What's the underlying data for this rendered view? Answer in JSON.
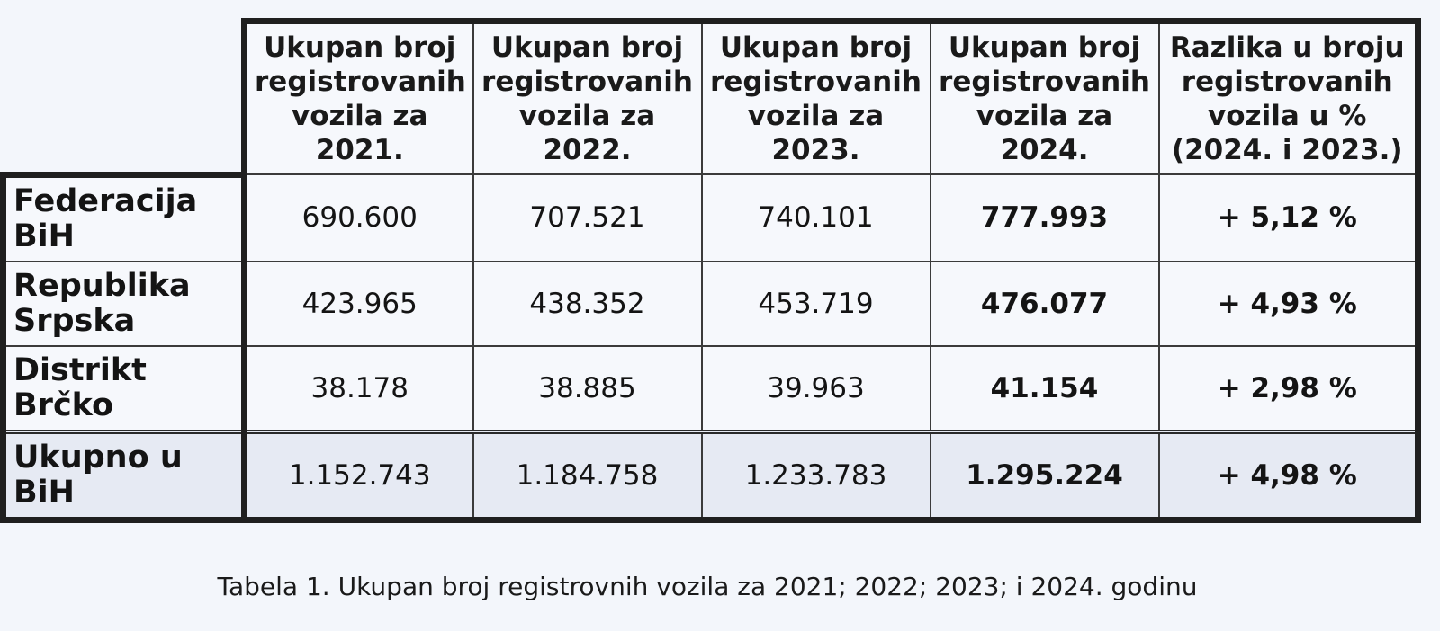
{
  "table": {
    "headers": [
      "",
      "Ukupan broj registrovanih vozila za 2021.",
      "Ukupan broj registrovanih vozila za 2022.",
      "Ukupan broj registrovanih vozila za 2023.",
      "Ukupan broj registrovanih vozila za 2024.",
      "Razlika u broju registrovanih vozila u % (2024. i 2023.)"
    ],
    "rows": [
      {
        "label": "Federacija BiH",
        "cells": [
          "690.600",
          "707.521",
          "740.101",
          "777.993",
          "+ 5,12 %"
        ]
      },
      {
        "label": "Republika Srpska",
        "cells": [
          "423.965",
          "438.352",
          "453.719",
          "476.077",
          "+ 4,93 %"
        ]
      },
      {
        "label": "Distrikt Brčko",
        "cells": [
          "38.178",
          "38.885",
          "39.963",
          "41.154",
          "+ 2,98 %"
        ]
      },
      {
        "label": "Ukupno u BiH",
        "cells": [
          "1.152.743",
          "1.184.758",
          "1.233.783",
          "1.295.224",
          "+ 4,98 %"
        ]
      }
    ]
  },
  "caption": "Tabela 1. Ukupan broj registrovnih vozila za 2021; 2022; 2023; i 2024. godinu"
}
